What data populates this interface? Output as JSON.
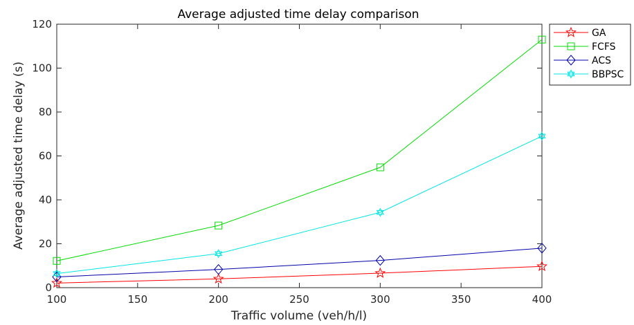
{
  "chart_data": {
    "type": "line",
    "title": "Average adjusted time delay comparison",
    "xlabel": "Traffic volume (veh/h/l)",
    "ylabel": "Average adjusted time delay (s)",
    "x": [
      100,
      200,
      300,
      400
    ],
    "xlim": [
      100,
      400
    ],
    "ylim": [
      0,
      120
    ],
    "xticks": [
      100,
      150,
      200,
      250,
      300,
      350,
      400
    ],
    "yticks": [
      0,
      20,
      40,
      60,
      80,
      100,
      120
    ],
    "grid": false,
    "legend_position": "outside-top-right",
    "series": [
      {
        "name": "GA",
        "values": [
          2.1,
          4.0,
          6.6,
          9.7
        ],
        "color": "#ff0000",
        "marker": "star"
      },
      {
        "name": "FCFS",
        "values": [
          12.2,
          28.3,
          54.8,
          113.0
        ],
        "color": "#00dd00",
        "marker": "square"
      },
      {
        "name": "ACS",
        "values": [
          4.9,
          8.3,
          12.4,
          18.0
        ],
        "color": "#0000aa",
        "marker": "diamond"
      },
      {
        "name": "BBPSC",
        "values": [
          6.4,
          15.5,
          34.3,
          69.0
        ],
        "color": "#00e5e5",
        "marker": "hexagram"
      }
    ]
  }
}
